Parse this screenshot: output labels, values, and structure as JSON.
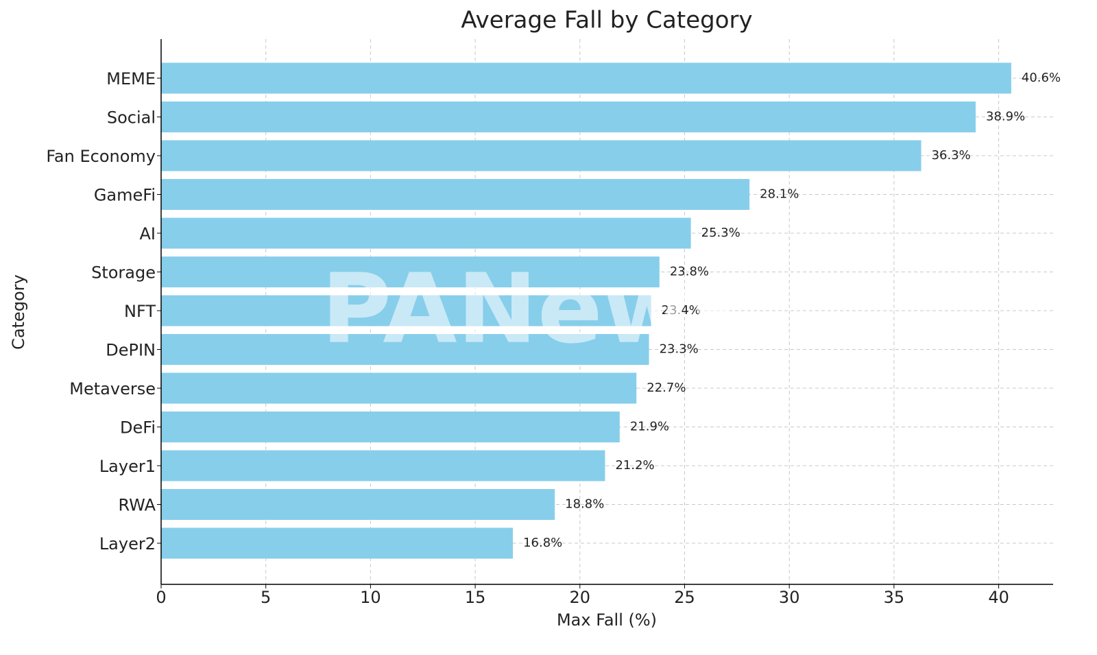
{
  "chart_data": {
    "type": "barh",
    "title": "Average Fall by Category",
    "xlabel": "Max Fall (%)",
    "ylabel": "Category",
    "categories": [
      "MEME",
      "Social",
      "Fan Economy",
      "GameFi",
      "AI",
      "Storage",
      "NFT",
      "DePIN",
      "Metaverse",
      "DeFi",
      "Layer1",
      "RWA",
      "Layer2"
    ],
    "values": [
      40.6,
      38.9,
      36.3,
      28.1,
      25.3,
      23.8,
      23.4,
      23.3,
      22.7,
      21.9,
      21.2,
      18.8,
      16.8
    ],
    "value_labels": [
      "40.6%",
      "38.9%",
      "36.3%",
      "28.1%",
      "25.3%",
      "23.8%",
      "23.4%",
      "23.3%",
      "22.7%",
      "21.9%",
      "21.2%",
      "18.8%",
      "16.8%"
    ],
    "color": "#87ceeb",
    "xlim": [
      0,
      42.6
    ],
    "xticks": [
      0,
      5,
      10,
      15,
      20,
      25,
      30,
      35,
      40
    ],
    "grid": true,
    "watermark": "PANews"
  }
}
